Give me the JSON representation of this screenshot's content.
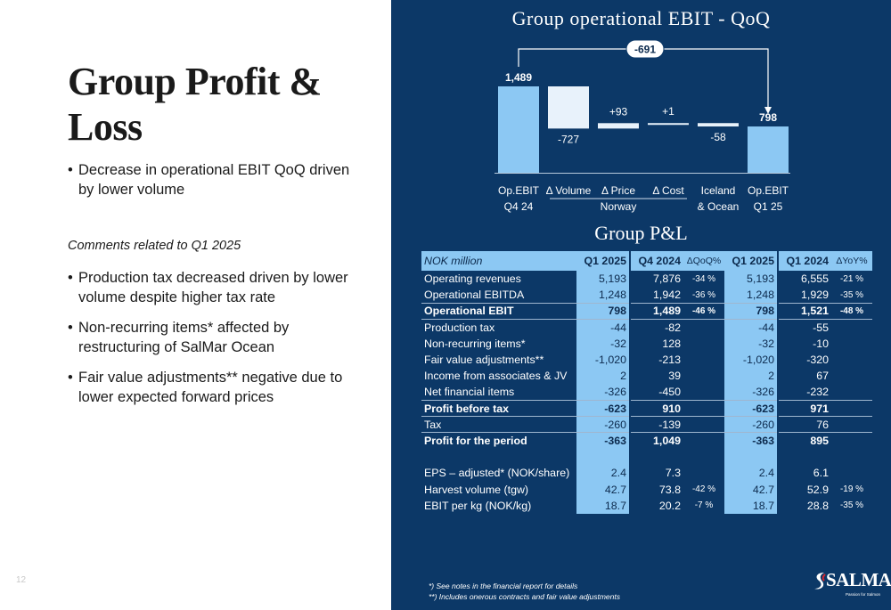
{
  "slide": {
    "title": "Group Profit & Loss",
    "page_number": "12",
    "bullet_main": "Decrease in operational EBIT QoQ driven by lower volume",
    "comments_heading": "Comments related to Q1 2025",
    "comments": [
      "Production tax decreased driven by lower volume despite higher tax rate",
      "Non-recurring items* affected by restructuring of SalMar Ocean",
      "Fair value adjustments** negative due to lower expected forward prices"
    ]
  },
  "chart_title": "Group operational EBIT - QoQ",
  "chart_data": {
    "type": "waterfall",
    "title": "Group operational EBIT - QoQ",
    "bridge_label": "-691",
    "categories": [
      "Op.EBIT Q4 24",
      "Δ Volume",
      "Δ Price",
      "Δ Cost",
      "Iceland & Ocean",
      "Op.EBIT Q1 25"
    ],
    "category_lines": [
      [
        "Op.EBIT",
        "Q4 24"
      ],
      [
        "Δ Volume",
        ""
      ],
      [
        "Δ Price",
        ""
      ],
      [
        "Δ Cost",
        ""
      ],
      [
        "Iceland",
        "& Ocean"
      ],
      [
        "Op.EBIT",
        "Q1 25"
      ]
    ],
    "group_label": "Norway",
    "values": [
      1489,
      -727,
      93,
      1,
      -58,
      798
    ],
    "labels": [
      "1,489",
      "-727",
      "+93",
      "+1",
      "-58",
      "798"
    ],
    "kinds": [
      "total",
      "delta",
      "delta",
      "delta",
      "delta",
      "total"
    ],
    "ylim": [
      0,
      1600
    ]
  },
  "pl_title": "Group P&L",
  "table": {
    "headers": [
      "NOK million",
      "Q1 2025",
      "Q4 2024",
      "ΔQoQ%",
      "Q1 2025",
      "Q1 2024",
      "ΔYoY%"
    ],
    "rows": [
      {
        "label": "Operating revenues",
        "v": [
          "5,193",
          "7,876",
          "-34 %",
          "5,193",
          "6,555",
          "-21 %"
        ],
        "bold": false,
        "rule": false
      },
      {
        "label": "Operational EBITDA",
        "v": [
          "1,248",
          "1,942",
          "-36 %",
          "1,248",
          "1,929",
          "-35 %"
        ],
        "bold": false,
        "rule": false
      },
      {
        "label": "Operational EBIT",
        "v": [
          "798",
          "1,489",
          "-46 %",
          "798",
          "1,521",
          "-48 %"
        ],
        "bold": true,
        "rule": true
      },
      {
        "label": "Production tax",
        "v": [
          "-44",
          "-82",
          "",
          "-44",
          "-55",
          ""
        ],
        "bold": false,
        "rule": true
      },
      {
        "label": "Non-recurring items*",
        "v": [
          "-32",
          "128",
          "",
          "-32",
          "-10",
          ""
        ],
        "bold": false,
        "rule": false
      },
      {
        "label": "Fair value adjustments**",
        "v": [
          "-1,020",
          "-213",
          "",
          "-1,020",
          "-320",
          ""
        ],
        "bold": false,
        "rule": false
      },
      {
        "label": "Income from associates & JV",
        "v": [
          "2",
          "39",
          "",
          "2",
          "67",
          ""
        ],
        "bold": false,
        "rule": false
      },
      {
        "label": "Net financial items",
        "v": [
          "-326",
          "-450",
          "",
          "-326",
          "-232",
          ""
        ],
        "bold": false,
        "rule": false
      },
      {
        "label": "Profit before tax",
        "v": [
          "-623",
          "910",
          "",
          "-623",
          "971",
          ""
        ],
        "bold": true,
        "rule": true
      },
      {
        "label": "Tax",
        "v": [
          "-260",
          "-139",
          "",
          "-260",
          "76",
          ""
        ],
        "bold": false,
        "rule": true
      },
      {
        "label": "Profit for the period",
        "v": [
          "-363",
          "1,049",
          "",
          "-363",
          "895",
          ""
        ],
        "bold": true,
        "rule": true
      },
      {
        "spacer": true
      },
      {
        "label": "EPS – adjusted* (NOK/share)",
        "v": [
          "2.4",
          "7.3",
          "",
          "2.4",
          "6.1",
          ""
        ],
        "bold": false,
        "rule": false
      },
      {
        "label": "Harvest volume (tgw)",
        "v": [
          "42.7",
          "73.8",
          "-42 %",
          "42.7",
          "52.9",
          "-19 %"
        ],
        "bold": false,
        "rule": false
      },
      {
        "label": "EBIT per kg (NOK/kg)",
        "v": [
          "18.7",
          "20.2",
          "-7 %",
          "18.7",
          "28.8",
          "-35 %"
        ],
        "bold": false,
        "rule": false
      }
    ]
  },
  "footnotes": [
    "*) See notes in the financial report for details",
    "**) Includes onerous contracts and fair value adjustments"
  ],
  "logo": {
    "text": "SALMAR",
    "tagline": "Passion for Salmon"
  },
  "colors": {
    "panel": "#0c3867",
    "accent": "#8cc8f3",
    "bar_total": "#8cc8f3",
    "bar_negative": "#e8f2fb"
  }
}
